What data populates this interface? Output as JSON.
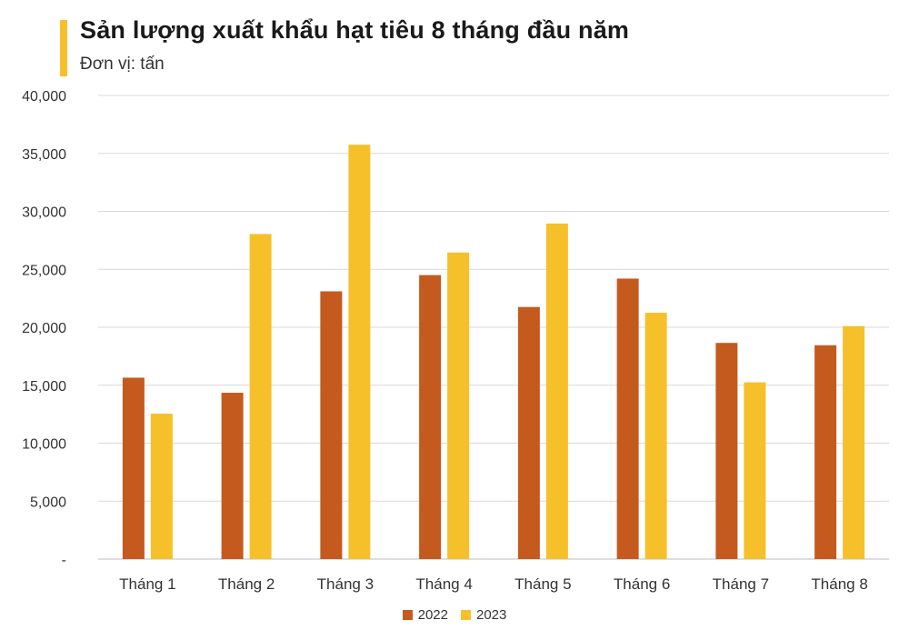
{
  "header": {
    "title": "Sản lượng xuất khẩu hạt tiêu 8 tháng đầu năm",
    "subtitle": "Đơn vị: tấn",
    "accent_color": "#f6c02b"
  },
  "chart_data": {
    "type": "bar",
    "title": "Sản lượng xuất khẩu hạt tiêu 8 tháng đầu năm",
    "subtitle": "Đơn vị: tấn",
    "xlabel": "",
    "ylabel": "",
    "categories": [
      "Tháng 1",
      "Tháng 2",
      "Tháng 3",
      "Tháng 4",
      "Tháng 5",
      "Tháng 6",
      "Tháng 7",
      "Tháng 8"
    ],
    "series": [
      {
        "name": "2022",
        "color": "#c55a1e",
        "values": [
          15650,
          14350,
          23100,
          24500,
          21750,
          24200,
          18650,
          18450
        ]
      },
      {
        "name": "2023",
        "color": "#f6c02b",
        "values": [
          12550,
          28050,
          35750,
          26450,
          28950,
          21250,
          15250,
          20100
        ]
      }
    ],
    "ylim": [
      0,
      40000
    ],
    "yticks": [
      0,
      5000,
      10000,
      15000,
      20000,
      25000,
      30000,
      35000,
      40000
    ],
    "ytick_labels": [
      "-",
      "5,000",
      "10,000",
      "15,000",
      "20,000",
      "25,000",
      "30,000",
      "35,000",
      "40,000"
    ],
    "grid": true,
    "legend_position": "bottom-center"
  }
}
